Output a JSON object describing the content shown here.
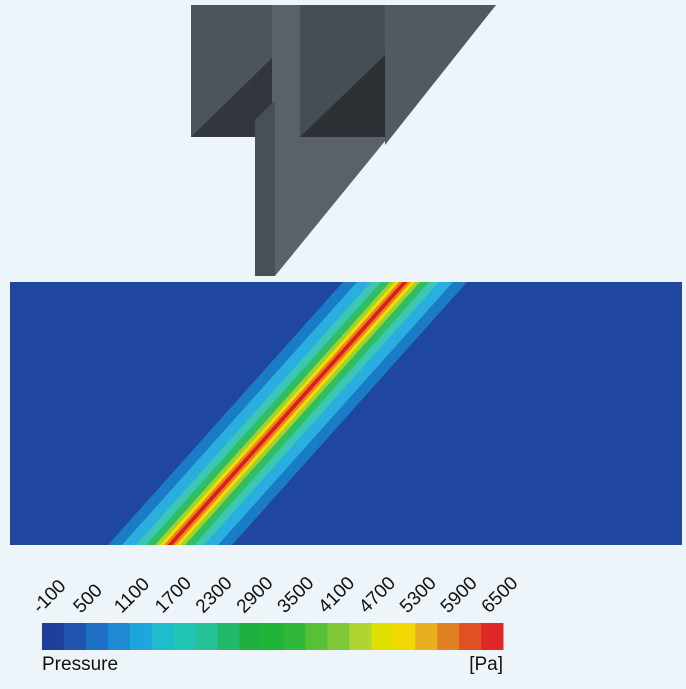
{
  "legend": {
    "ticks": [
      -100,
      500,
      1100,
      1700,
      2300,
      2900,
      3500,
      4100,
      4700,
      5300,
      5900,
      6500
    ],
    "title": "Pressure",
    "unit": "[Pa]",
    "colors": [
      "#1f3f9a",
      "#1f55b0",
      "#1e6ec4",
      "#1e8ad4",
      "#1ea6dc",
      "#1fbcd0",
      "#22c4b4",
      "#24c296",
      "#22b86a",
      "#20b040",
      "#20b438",
      "#30b838",
      "#58c038",
      "#80c838",
      "#b0d430",
      "#e0e000",
      "#f0d800",
      "#e8b020",
      "#e08020",
      "#e05020",
      "#e02828"
    ]
  }
}
